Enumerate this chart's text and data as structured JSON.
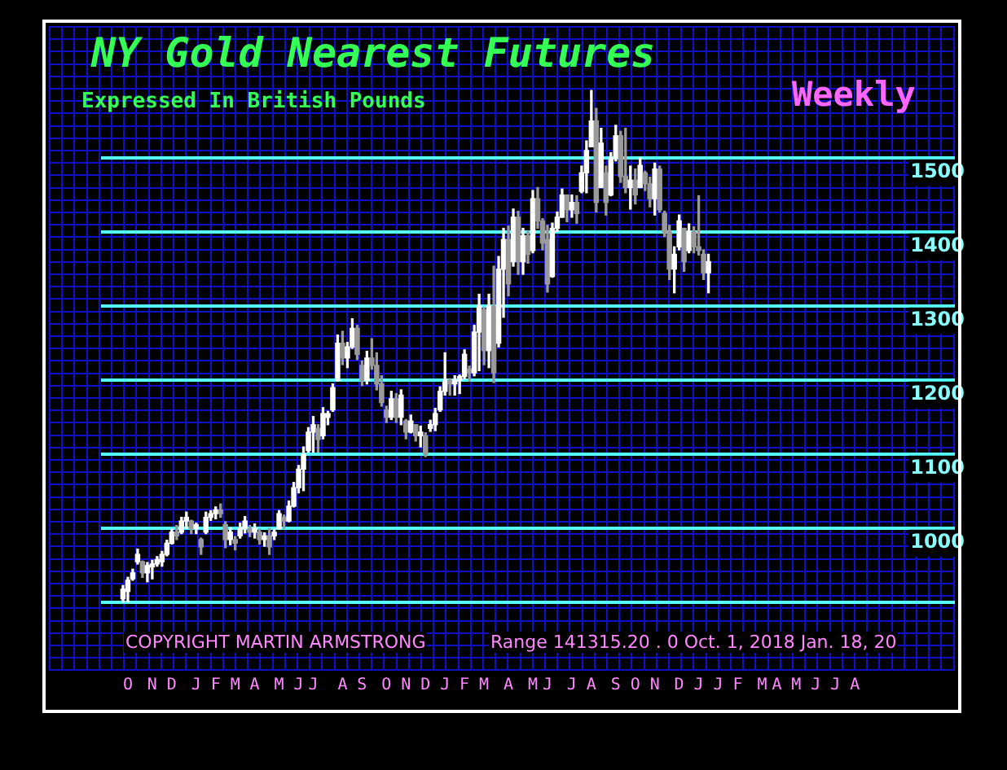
{
  "chart_data": {
    "type": "candlestick",
    "title": "NY Gold Nearest Futures",
    "subtitle": "Expressed In British Pounds",
    "annotations": [
      "Weekly",
      "COPYRIGHT MARTIN ARMSTRONG",
      "Range 141315.20 . 0 Oct. 1, 2018 Jan. 18, 20"
    ],
    "colors": [
      null,
      null,
      null,
      null,
      "#ffffff",
      "#ffffff",
      "#ffffff",
      "#ffffff",
      "#9a9a9a",
      "#ffffff",
      "#ffffff",
      "#ffffff",
      "#ffffff",
      "#ffffff",
      "#ffffff",
      "#9a9a9a",
      "#ffffff",
      "#ffffff",
      "#9a9a9a",
      "#ffffff",
      "#9a9a9a",
      "#ffffff",
      "#ffffff",
      "#ffffff",
      "#9a9a9a",
      "#9a9a9a",
      "#ffffff",
      "#9a9a9a",
      "#ffffff",
      "#ffffff",
      "#9a9a9a",
      "#ffffff",
      "#9a9a9a",
      "#ffffff",
      "#9a9a9a",
      "#ffffff",
      "#ffffff",
      "#9a9a9a",
      "#ffffff",
      "#ffffff",
      "#ffffff",
      "#ffffff",
      "#ffffff",
      "#ffffff",
      "#9a9a9a",
      "#ffffff",
      "#ffffff",
      "#ffffff",
      "#ffffff",
      "#9a9a9a",
      "#ffffff",
      "#ffffff",
      "#9a9a9a",
      "#9a9a9a",
      "#ffffff",
      "#9a9a9a",
      "#9a9a9a",
      "#9a9a9a",
      "#9a9a9a",
      "#ffffff",
      "#9a9a9a",
      "#ffffff",
      "#9a9a9a",
      "#ffffff",
      "#9a9a9a",
      "#ffffff",
      "#9a9a9a",
      "#ffffff",
      "#ffffff",
      "#ffffff",
      "#ffffff",
      "#9a9a9a",
      "#ffffff",
      "#ffffff",
      "#ffffff",
      "#9a9a9a",
      "#ffffff",
      "#ffffff",
      "#9a9a9a",
      "#ffffff",
      "#9a9a9a",
      "#ffffff",
      "#ffffff",
      "#9a9a9a",
      "#ffffff",
      "#9a9a9a",
      "#ffffff",
      "#9a9a9a",
      "#ffffff",
      "#9a9a9a",
      "#9a9a9a",
      "#9a9a9a",
      "#ffffff",
      "#ffffff",
      "#ffffff",
      "#9a9a9a",
      "#ffffff",
      "#9a9a9a",
      "#ffffff",
      "#ffffff",
      "#ffffff",
      "#9a9a9a",
      "#ffffff",
      "#9a9a9a",
      "#ffffff",
      "#ffffff",
      "#9a9a9a",
      "#9a9a9a",
      "#ffffff",
      "#9a9a9a",
      "#ffffff",
      "#9a9a9a",
      "#9a9a9a",
      "#ffffff",
      "#9a9a9a",
      "#9a9a9a",
      "#9a9a9a",
      "#ffffff",
      "#ffffff",
      "#9a9a9a",
      "#ffffff",
      "#9a9a9a",
      "#9a9a9a",
      "#9a9a9a",
      "#ffffff",
      null,
      null,
      null,
      null,
      null,
      null,
      null,
      null,
      null,
      null,
      null,
      null,
      null,
      null,
      null,
      null,
      null,
      null,
      null,
      null,
      null,
      null,
      null,
      null,
      null,
      null,
      null,
      null,
      null,
      null,
      null,
      null,
      null,
      null,
      null,
      null,
      null,
      null,
      null,
      null,
      null,
      null,
      null,
      null,
      null,
      null,
      null,
      null,
      null,
      null
    ],
    "ylim": [
      808,
      1678
    ],
    "yticks": [
      {
        "value": 900,
        "label": null
      },
      1000,
      1100,
      1200,
      1300,
      1400,
      1500
    ],
    "grid": "y",
    "categories": [
      null,
      null,
      null,
      null,
      null,
      "O",
      null,
      null,
      null,
      null,
      "N",
      null,
      null,
      null,
      "D",
      null,
      null,
      null,
      null,
      "J",
      null,
      null,
      null,
      "F",
      null,
      null,
      null,
      "M",
      null,
      null,
      null,
      "A",
      null,
      null,
      null,
      null,
      "M",
      null,
      null,
      null,
      "J",
      null,
      null,
      "J",
      null,
      null,
      null,
      null,
      null,
      "A",
      null,
      null,
      null,
      "S",
      null,
      null,
      null,
      null,
      "O",
      null,
      null,
      null,
      "N",
      null,
      null,
      null,
      "D",
      null,
      null,
      null,
      "J",
      null,
      null,
      null,
      "F",
      null,
      null,
      null,
      "M",
      null,
      null,
      null,
      null,
      "A",
      null,
      null,
      null,
      null,
      "M",
      null,
      null,
      "J",
      null,
      null,
      null,
      null,
      "J",
      null,
      null,
      null,
      "A",
      null,
      null,
      null,
      null,
      "S",
      null,
      null,
      null,
      "O",
      null,
      null,
      null,
      "N",
      null,
      null,
      null,
      null,
      "D",
      null,
      null,
      null,
      "J",
      null,
      null,
      null,
      "J",
      null,
      null,
      null,
      "F",
      null,
      null,
      null,
      null,
      "M",
      null,
      null,
      "A",
      null,
      null,
      null,
      "M",
      null,
      null,
      null,
      "J",
      null,
      null,
      null,
      "J",
      null,
      null,
      null,
      "A",
      null,
      null,
      null,
      null,
      null,
      null,
      null,
      null,
      null,
      null,
      null,
      null,
      null,
      null,
      null,
      null,
      null,
      null,
      null,
      null
    ],
    "ohlc": [
      null,
      null,
      null,
      null,
      [
        905,
        923,
        901,
        918
      ],
      [
        915,
        934,
        901,
        930
      ],
      [
        932,
        945,
        930,
        940
      ],
      [
        955,
        972,
        952,
        965
      ],
      [
        955,
        956,
        934,
        940
      ],
      [
        940,
        954,
        928,
        950
      ],
      [
        948,
        957,
        932,
        952
      ],
      [
        952,
        962,
        949,
        958
      ],
      [
        955,
        969,
        949,
        965
      ],
      [
        965,
        984,
        963,
        980
      ],
      [
        980,
        999,
        979,
        995
      ],
      [
        995,
        1004,
        985,
        990
      ],
      [
        995,
        1015,
        993,
        1010
      ],
      [
        1010,
        1022,
        1000,
        1015
      ],
      [
        1010,
        1011,
        993,
        1000
      ],
      [
        1000,
        1007,
        993,
        1005
      ],
      [
        985,
        987,
        965,
        975
      ],
      [
        995,
        1022,
        993,
        1015
      ],
      [
        1015,
        1024,
        1011,
        1020
      ],
      [
        1020,
        1029,
        1013,
        1025
      ],
      [
        1025,
        1033,
        1015,
        1020
      ],
      [
        1005,
        1009,
        974,
        985
      ],
      [
        985,
        1001,
        978,
        995
      ],
      [
        985,
        989,
        971,
        980
      ],
      [
        990,
        1007,
        987,
        1000
      ],
      [
        1000,
        1016,
        994,
        1010
      ],
      [
        1000,
        1004,
        989,
        995
      ],
      [
        995,
        1006,
        987,
        1000
      ],
      [
        995,
        999,
        979,
        985
      ],
      [
        985,
        994,
        976,
        990
      ],
      [
        990,
        1000,
        965,
        975
      ],
      [
        990,
        999,
        985,
        995
      ],
      [
        1000,
        1024,
        999,
        1020
      ],
      [
        1015,
        1018,
        1000,
        1010
      ],
      [
        1010,
        1037,
        1009,
        1030
      ],
      [
        1030,
        1062,
        1029,
        1055
      ],
      [
        1055,
        1085,
        1048,
        1080
      ],
      [
        1080,
        1110,
        1051,
        1100
      ],
      [
        1105,
        1136,
        1103,
        1130
      ],
      [
        1130,
        1151,
        1103,
        1140
      ],
      [
        1135,
        1140,
        1103,
        1120
      ],
      [
        1125,
        1163,
        1121,
        1155
      ],
      [
        1150,
        1158,
        1140,
        1155
      ],
      [
        1160,
        1195,
        1158,
        1190
      ],
      [
        1200,
        1261,
        1199,
        1250
      ],
      [
        1250,
        1266,
        1221,
        1230
      ],
      [
        1230,
        1251,
        1217,
        1245
      ],
      [
        1245,
        1283,
        1243,
        1270
      ],
      [
        1270,
        1274,
        1228,
        1235
      ],
      [
        1220,
        1226,
        1193,
        1200
      ],
      [
        1200,
        1239,
        1195,
        1230
      ],
      [
        1230,
        1256,
        1215,
        1220
      ],
      [
        1220,
        1237,
        1187,
        1195
      ],
      [
        1195,
        1206,
        1165,
        1170
      ],
      [
        1160,
        1165,
        1143,
        1150
      ],
      [
        1150,
        1185,
        1147,
        1175
      ],
      [
        1175,
        1182,
        1143,
        1150
      ],
      [
        1150,
        1187,
        1140,
        1180
      ],
      [
        1145,
        1147,
        1121,
        1130
      ],
      [
        1130,
        1153,
        1129,
        1145
      ],
      [
        1140,
        1140,
        1118,
        1125
      ],
      [
        1125,
        1138,
        1110,
        1130
      ],
      [
        1125,
        1129,
        1097,
        1100
      ],
      [
        1135,
        1146,
        1131,
        1140
      ],
      [
        1140,
        1162,
        1132,
        1155
      ],
      [
        1160,
        1191,
        1158,
        1185
      ],
      [
        1185,
        1237,
        1180,
        1200
      ],
      [
        1200,
        1202,
        1180,
        1195
      ],
      [
        1195,
        1206,
        1180,
        1200
      ],
      [
        1200,
        1207,
        1182,
        1205
      ],
      [
        1205,
        1241,
        1202,
        1235
      ],
      [
        1215,
        1219,
        1199,
        1210
      ],
      [
        1210,
        1274,
        1206,
        1265
      ],
      [
        1265,
        1316,
        1213,
        1300
      ],
      [
        1295,
        1298,
        1221,
        1240
      ],
      [
        1240,
        1316,
        1217,
        1300
      ],
      [
        1300,
        1354,
        1197,
        1210
      ],
      [
        1250,
        1367,
        1245,
        1350
      ],
      [
        1350,
        1405,
        1285,
        1390
      ],
      [
        1390,
        1408,
        1314,
        1330
      ],
      [
        1360,
        1431,
        1354,
        1420
      ],
      [
        1420,
        1428,
        1343,
        1360
      ],
      [
        1360,
        1405,
        1343,
        1395
      ],
      [
        1395,
        1401,
        1358,
        1370
      ],
      [
        1375,
        1456,
        1372,
        1445
      ],
      [
        1445,
        1460,
        1405,
        1415
      ],
      [
        1415,
        1418,
        1376,
        1385
      ],
      [
        1390,
        1409,
        1319,
        1330
      ],
      [
        1340,
        1412,
        1339,
        1405
      ],
      [
        1405,
        1427,
        1401,
        1420
      ],
      [
        1420,
        1458,
        1420,
        1450
      ],
      [
        1450,
        1450,
        1414,
        1430
      ],
      [
        1430,
        1450,
        1420,
        1440
      ],
      [
        1440,
        1449,
        1412,
        1425
      ],
      [
        1455,
        1489,
        1453,
        1480
      ],
      [
        1480,
        1523,
        1453,
        1510
      ],
      [
        1515,
        1591,
        1515,
        1550
      ],
      [
        1550,
        1567,
        1427,
        1440
      ],
      [
        1460,
        1540,
        1460,
        1520
      ],
      [
        1480,
        1489,
        1423,
        1440
      ],
      [
        1450,
        1507,
        1449,
        1500
      ],
      [
        1500,
        1544,
        1496,
        1530
      ],
      [
        1530,
        1536,
        1467,
        1475
      ],
      [
        1475,
        1540,
        1453,
        1460
      ],
      [
        1460,
        1489,
        1431,
        1470
      ],
      [
        1470,
        1485,
        1438,
        1450
      ],
      [
        1460,
        1500,
        1460,
        1490
      ],
      [
        1480,
        1482,
        1456,
        1465
      ],
      [
        1465,
        1474,
        1434,
        1445
      ],
      [
        1445,
        1493,
        1423,
        1485
      ],
      [
        1485,
        1489,
        1427,
        1430
      ],
      [
        1425,
        1428,
        1394,
        1400
      ],
      [
        1400,
        1409,
        1336,
        1350
      ],
      [
        1350,
        1380,
        1318,
        1370
      ],
      [
        1380,
        1423,
        1376,
        1415
      ],
      [
        1405,
        1405,
        1347,
        1360
      ],
      [
        1375,
        1411,
        1372,
        1400
      ],
      [
        1400,
        1407,
        1372,
        1380
      ],
      [
        1380,
        1449,
        1369,
        1375
      ],
      [
        1370,
        1376,
        1336,
        1345
      ],
      [
        1345,
        1370,
        1318,
        1360
      ],
      null,
      null,
      null,
      null,
      null,
      null,
      null,
      null,
      null,
      null,
      null,
      null,
      null,
      null,
      null,
      null,
      null,
      null,
      null,
      null,
      null,
      null,
      null,
      null,
      null,
      null,
      null,
      null,
      null,
      null,
      null,
      null,
      null,
      null,
      null,
      null,
      null,
      null,
      null,
      null,
      null,
      null,
      null,
      null,
      null,
      null,
      null,
      null,
      null,
      null
    ]
  }
}
